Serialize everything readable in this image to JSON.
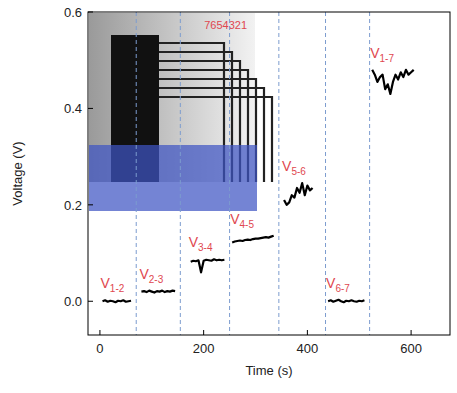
{
  "chart_data": {
    "type": "line",
    "x_label": "Time (s)",
    "y_label": "Voltage (V)",
    "xlim": [
      -23,
      675
    ],
    "ylim": [
      -0.07,
      0.6
    ],
    "xticks": [
      0,
      200,
      400,
      600
    ],
    "yticks": [
      {
        "value": 0,
        "label": "0.0"
      },
      {
        "value": 0.2,
        "label": "0.2"
      },
      {
        "value": 0.4,
        "label": "0.4"
      },
      {
        "value": 0.6,
        "label": "0.6"
      }
    ],
    "grid": false,
    "color": "#000000",
    "dividers": [
      70,
      155,
      250,
      345,
      435,
      520
    ],
    "inset_label": "7654321",
    "series": [
      {
        "name": "V1-2",
        "x": [
          5,
          10,
          15,
          20,
          25,
          30,
          35,
          40,
          45,
          50,
          55,
          60
        ],
        "values": [
          0.0,
          0.002,
          -0.001,
          0.001,
          0.0,
          -0.002,
          0.001,
          0.0,
          0.002,
          -0.001,
          0.0,
          0.001
        ]
      },
      {
        "name": "V2-3",
        "x": [
          80,
          85,
          90,
          95,
          100,
          105,
          110,
          115,
          120,
          125,
          130,
          135,
          140,
          145
        ],
        "values": [
          0.02,
          0.021,
          0.019,
          0.022,
          0.02,
          0.018,
          0.021,
          0.02,
          0.022,
          0.019,
          0.021,
          0.02,
          0.022,
          0.021
        ]
      },
      {
        "name": "V3-4",
        "x": [
          175,
          180,
          185,
          190,
          195,
          200,
          205,
          210,
          215,
          220,
          225,
          230,
          235,
          240
        ],
        "values": [
          0.082,
          0.084,
          0.083,
          0.085,
          0.06,
          0.084,
          0.086,
          0.085,
          0.084,
          0.087,
          0.085,
          0.086,
          0.085,
          0.086
        ]
      },
      {
        "name": "V4-5",
        "x": [
          255,
          260,
          265,
          270,
          275,
          280,
          285,
          290,
          295,
          300,
          305,
          310,
          315,
          320,
          325,
          330,
          335
        ],
        "values": [
          0.122,
          0.124,
          0.125,
          0.126,
          0.125,
          0.127,
          0.128,
          0.127,
          0.129,
          0.13,
          0.13,
          0.131,
          0.132,
          0.133,
          0.132,
          0.134,
          0.136
        ]
      },
      {
        "name": "V5-6",
        "x": [
          355,
          360,
          365,
          370,
          375,
          380,
          385,
          390,
          395,
          400,
          405,
          410
        ],
        "values": [
          0.21,
          0.2,
          0.205,
          0.22,
          0.215,
          0.235,
          0.225,
          0.245,
          0.22,
          0.24,
          0.23,
          0.235
        ]
      },
      {
        "name": "V6-7",
        "x": [
          440,
          445,
          450,
          455,
          460,
          465,
          470,
          475,
          480,
          485,
          490,
          495,
          500,
          505,
          510
        ],
        "values": [
          0.0,
          0.002,
          -0.001,
          0.001,
          0.003,
          0.0,
          -0.002,
          0.001,
          0.0,
          0.002,
          0.0,
          -0.001,
          0.001,
          0.0,
          0.002
        ]
      },
      {
        "name": "V1-7",
        "x": [
          525,
          530,
          535,
          540,
          545,
          550,
          555,
          560,
          565,
          570,
          575,
          580,
          585,
          590,
          595,
          600,
          605
        ],
        "values": [
          0.48,
          0.47,
          0.455,
          0.465,
          0.47,
          0.44,
          0.45,
          0.43,
          0.455,
          0.47,
          0.46,
          0.475,
          0.465,
          0.48,
          0.47,
          0.475,
          0.48
        ]
      }
    ]
  }
}
